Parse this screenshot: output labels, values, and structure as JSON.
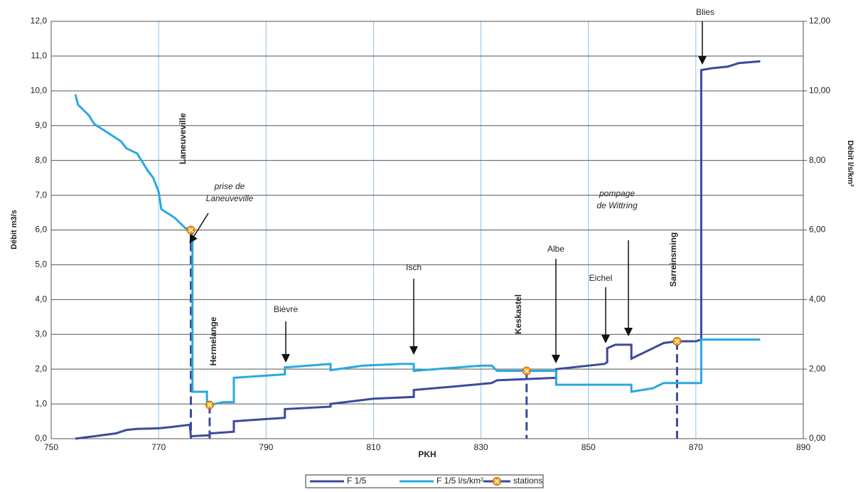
{
  "chart_data": {
    "type": "line",
    "xlabel": "PKH",
    "ylabel": "Débit m3/s",
    "y2label": "Débit l/s/km²",
    "xlim": [
      750,
      890
    ],
    "xticks": [
      750,
      770,
      790,
      810,
      830,
      850,
      870,
      890
    ],
    "ylim": [
      0,
      12
    ],
    "yticks": [
      {
        "value": 0,
        "label": "0,0"
      },
      {
        "value": 1,
        "label": "1,0"
      },
      {
        "value": 2,
        "label": "2,0"
      },
      {
        "value": 3,
        "label": "3,0"
      },
      {
        "value": 4,
        "label": "4,0"
      },
      {
        "value": 5,
        "label": "5,0"
      },
      {
        "value": 6,
        "label": "6,0"
      },
      {
        "value": 7,
        "label": "7,0"
      },
      {
        "value": 8,
        "label": "8,0"
      },
      {
        "value": 9,
        "label": "9,0"
      },
      {
        "value": 10,
        "label": "10,0"
      },
      {
        "value": 11,
        "label": "11,0"
      },
      {
        "value": 12,
        "label": "12,0"
      }
    ],
    "y2lim": [
      0,
      12
    ],
    "y2ticks": [
      {
        "value": 0,
        "label": "0,00"
      },
      {
        "value": 2,
        "label": "2,00"
      },
      {
        "value": 4,
        "label": "4,00"
      },
      {
        "value": 6,
        "label": "6,00"
      },
      {
        "value": 8,
        "label": "8,00"
      },
      {
        "value": 10,
        "label": "10,00"
      },
      {
        "value": 12,
        "label": "12,00"
      }
    ],
    "grid": true,
    "legend": "bottom",
    "series": [
      {
        "name": "F 1/5",
        "color": "#3b4a9c",
        "x": [
          754.5,
          758,
          762,
          764,
          766,
          770,
          772,
          775.8,
          776,
          779.5,
          779.5,
          784,
          784,
          793.5,
          793.5,
          802,
          802,
          810,
          817.5,
          817.5,
          825,
          832,
          833,
          844,
          844,
          853,
          853.5,
          853.5,
          855,
          858,
          858,
          862,
          864,
          866.5,
          870,
          871,
          871,
          873,
          876,
          878,
          882
        ],
        "values": [
          0.0,
          0.07,
          0.15,
          0.25,
          0.28,
          0.3,
          0.33,
          0.4,
          0.07,
          0.1,
          0.15,
          0.2,
          0.5,
          0.6,
          0.85,
          0.92,
          1.0,
          1.15,
          1.2,
          1.4,
          1.5,
          1.6,
          1.68,
          1.75,
          2.0,
          2.15,
          2.2,
          2.6,
          2.7,
          2.7,
          2.3,
          2.6,
          2.75,
          2.8,
          2.8,
          2.85,
          10.6,
          10.65,
          10.7,
          10.8,
          10.85
        ]
      },
      {
        "name": "F 1/5 l/s/km²",
        "color": "#2aa8e0",
        "axis": "y2",
        "x": [
          754.5,
          755,
          757,
          758,
          760,
          763,
          764,
          766,
          767,
          768,
          769,
          770,
          770.5,
          773,
          775,
          776.3,
          776.3,
          779,
          779,
          782,
          784,
          784,
          793.5,
          793.5,
          802,
          802,
          808,
          815,
          817.5,
          817.5,
          830,
          832,
          833,
          844,
          844,
          853,
          858,
          858,
          862,
          864,
          871,
          871,
          875,
          882
        ],
        "values": [
          9.9,
          9.6,
          9.3,
          9.05,
          8.85,
          8.55,
          8.35,
          8.2,
          7.95,
          7.7,
          7.5,
          7.1,
          6.6,
          6.35,
          6.05,
          6.0,
          1.35,
          1.35,
          0.95,
          1.05,
          1.05,
          1.75,
          1.85,
          2.05,
          2.15,
          1.97,
          2.1,
          2.15,
          2.15,
          1.95,
          2.1,
          2.1,
          1.95,
          1.95,
          1.55,
          1.55,
          1.55,
          1.35,
          1.45,
          1.6,
          1.6,
          2.85,
          2.85,
          2.85
        ]
      }
    ],
    "stations": {
      "name": "stations",
      "color": "#f0a020",
      "x": [
        776,
        779.5,
        838.5,
        866.5
      ],
      "values": [
        6.0,
        0.97,
        1.95,
        2.8
      ]
    },
    "annotations": [
      "Laneuveville",
      "prise de",
      "Laneuveville",
      "Hermelange",
      "Bièvre",
      "Isch",
      "Keskastel",
      "Albe",
      "Eichel",
      "pompage",
      "de Wittring",
      "Sarreinsming",
      "Blies"
    ]
  }
}
